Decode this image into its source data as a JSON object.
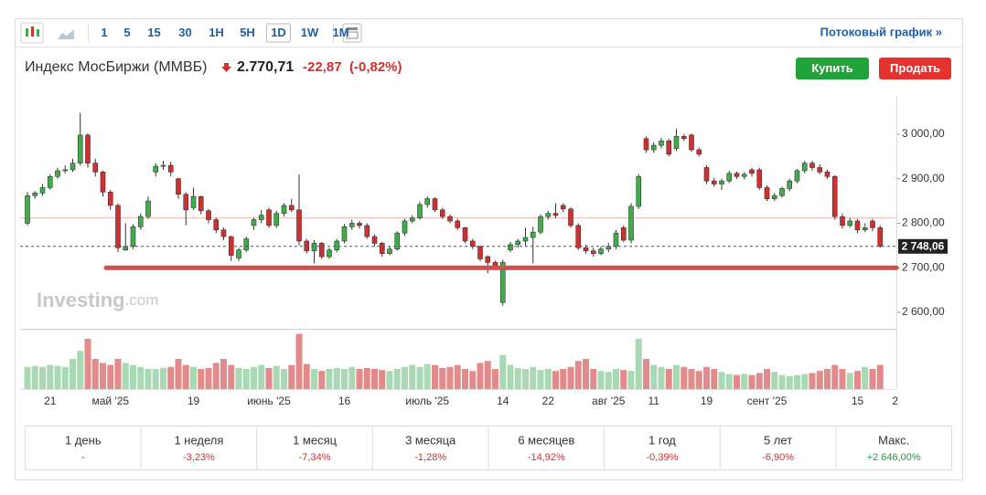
{
  "toolbar": {
    "timeframes": [
      "1",
      "5",
      "15",
      "30",
      "1H",
      "5H",
      "1D",
      "1W",
      "1M"
    ],
    "active": "1D",
    "stream_link": "Потоковый график »"
  },
  "header": {
    "name": "Индекс МосБиржи (ММВБ)",
    "price": "2.770,71",
    "change": "-22,87",
    "change_pct": "(-0,82%)",
    "buy": "Купить",
    "sell": "Продать"
  },
  "watermark": {
    "brand": "Investing",
    "suffix": ".com"
  },
  "chart_data": {
    "type": "candlestick",
    "categories": [
      null,
      null,
      null,
      "21",
      null,
      null,
      null,
      null,
      null,
      null,
      null,
      "май '25",
      null,
      null,
      null,
      null,
      null,
      null,
      null,
      null,
      null,
      null,
      "19",
      null,
      null,
      null,
      null,
      null,
      null,
      null,
      null,
      null,
      "июнь '25",
      null,
      null,
      null,
      null,
      null,
      null,
      null,
      null,
      null,
      "16",
      null,
      null,
      null,
      null,
      null,
      null,
      null,
      null,
      null,
      null,
      "июль '25",
      null,
      null,
      null,
      null,
      null,
      null,
      null,
      null,
      null,
      "14",
      null,
      null,
      null,
      null,
      null,
      "22",
      null,
      null,
      null,
      null,
      null,
      null,
      null,
      "авг '25",
      null,
      null,
      null,
      null,
      null,
      "11",
      null,
      null,
      null,
      null,
      null,
      null,
      "19",
      null,
      null,
      null,
      null,
      null,
      null,
      null,
      "сент '25",
      null,
      null,
      null,
      null,
      null,
      null,
      null,
      null,
      null,
      null,
      null,
      "15",
      null,
      null,
      null,
      null,
      "2"
    ],
    "ohlc": [
      [
        2800,
        2870,
        2795,
        2862
      ],
      [
        2862,
        2872,
        2855,
        2868
      ],
      [
        2868,
        2888,
        2862,
        2880
      ],
      [
        2880,
        2910,
        2875,
        2905
      ],
      [
        2905,
        2925,
        2900,
        2918
      ],
      [
        2918,
        2930,
        2912,
        2920
      ],
      [
        2920,
        2945,
        2915,
        2935
      ],
      [
        2935,
        3048,
        2930,
        2998
      ],
      [
        2998,
        3002,
        2925,
        2935
      ],
      [
        2935,
        2945,
        2905,
        2915
      ],
      [
        2915,
        2918,
        2860,
        2870
      ],
      [
        2870,
        2875,
        2830,
        2840
      ],
      [
        2840,
        2845,
        2735,
        2745
      ],
      [
        2740,
        2800,
        2738,
        2748
      ],
      [
        2748,
        2798,
        2742,
        2792
      ],
      [
        2792,
        2822,
        2785,
        2815
      ],
      [
        2815,
        2860,
        2810,
        2850
      ],
      [
        2915,
        2935,
        2905,
        2928
      ],
      [
        2928,
        2940,
        2920,
        2930
      ],
      [
        2930,
        2938,
        2905,
        2915
      ],
      [
        2900,
        2902,
        2855,
        2865
      ],
      [
        2865,
        2870,
        2795,
        2830
      ],
      [
        2835,
        2880,
        2830,
        2860
      ],
      [
        2860,
        2862,
        2820,
        2828
      ],
      [
        2828,
        2832,
        2800,
        2808
      ],
      [
        2808,
        2812,
        2778,
        2785
      ],
      [
        2785,
        2790,
        2762,
        2770
      ],
      [
        2770,
        2772,
        2715,
        2728
      ],
      [
        2722,
        2745,
        2715,
        2740
      ],
      [
        2740,
        2770,
        2735,
        2765
      ],
      [
        2795,
        2812,
        2785,
        2808
      ],
      [
        2808,
        2830,
        2800,
        2818
      ],
      [
        2830,
        2835,
        2790,
        2795
      ],
      [
        2795,
        2828,
        2790,
        2822
      ],
      [
        2822,
        2845,
        2815,
        2840
      ],
      [
        2840,
        2855,
        2825,
        2830
      ],
      [
        2830,
        2910,
        2750,
        2760
      ],
      [
        2760,
        2765,
        2732,
        2738
      ],
      [
        2738,
        2762,
        2710,
        2755
      ],
      [
        2755,
        2758,
        2720,
        2725
      ],
      [
        2725,
        2745,
        2720,
        2740
      ],
      [
        2740,
        2765,
        2735,
        2760
      ],
      [
        2760,
        2798,
        2755,
        2792
      ],
      [
        2792,
        2808,
        2785,
        2800
      ],
      [
        2800,
        2805,
        2788,
        2795
      ],
      [
        2795,
        2800,
        2765,
        2770
      ],
      [
        2770,
        2775,
        2748,
        2755
      ],
      [
        2755,
        2758,
        2725,
        2732
      ],
      [
        2732,
        2748,
        2728,
        2742
      ],
      [
        2742,
        2782,
        2738,
        2778
      ],
      [
        2778,
        2810,
        2772,
        2805
      ],
      [
        2805,
        2818,
        2800,
        2812
      ],
      [
        2812,
        2848,
        2808,
        2842
      ],
      [
        2842,
        2860,
        2835,
        2855
      ],
      [
        2855,
        2858,
        2825,
        2830
      ],
      [
        2830,
        2835,
        2810,
        2815
      ],
      [
        2815,
        2820,
        2800,
        2805
      ],
      [
        2805,
        2810,
        2785,
        2790
      ],
      [
        2790,
        2792,
        2755,
        2760
      ],
      [
        2760,
        2765,
        2742,
        2748
      ],
      [
        2748,
        2750,
        2715,
        2720
      ],
      [
        2725,
        2728,
        2688,
        2712
      ],
      [
        2712,
        2716,
        2695,
        2700
      ],
      [
        2622,
        2718,
        2615,
        2712
      ],
      [
        2740,
        2758,
        2735,
        2752
      ],
      [
        2752,
        2765,
        2745,
        2760
      ],
      [
        2760,
        2790,
        2750,
        2768
      ],
      [
        2768,
        2792,
        2710,
        2780
      ],
      [
        2780,
        2820,
        2775,
        2815
      ],
      [
        2815,
        2828,
        2808,
        2822
      ],
      [
        2822,
        2845,
        2812,
        2818
      ],
      [
        2840,
        2845,
        2825,
        2832
      ],
      [
        2832,
        2836,
        2790,
        2795
      ],
      [
        2795,
        2800,
        2740,
        2745
      ],
      [
        2745,
        2752,
        2732,
        2738
      ],
      [
        2738,
        2745,
        2725,
        2732
      ],
      [
        2732,
        2748,
        2728,
        2742
      ],
      [
        2742,
        2756,
        2735,
        2748
      ],
      [
        2748,
        2785,
        2742,
        2778
      ],
      [
        2790,
        2795,
        2758,
        2762
      ],
      [
        2762,
        2845,
        2755,
        2838
      ],
      [
        2838,
        2910,
        2832,
        2905
      ],
      [
        2990,
        2995,
        2958,
        2965
      ],
      [
        2965,
        2982,
        2958,
        2975
      ],
      [
        2975,
        2992,
        2968,
        2985
      ],
      [
        2985,
        2990,
        2950,
        2955
      ],
      [
        2968,
        3012,
        2962,
        2995
      ],
      [
        2995,
        3000,
        2985,
        2990
      ],
      [
        2998,
        3002,
        2960,
        2965
      ],
      [
        2965,
        2970,
        2950,
        2955
      ],
      [
        2925,
        2930,
        2888,
        2895
      ],
      [
        2895,
        2902,
        2882,
        2888
      ],
      [
        2888,
        2900,
        2875,
        2895
      ],
      [
        2895,
        2918,
        2890,
        2912
      ],
      [
        2912,
        2916,
        2900,
        2905
      ],
      [
        2905,
        2915,
        2898,
        2910
      ],
      [
        2920,
        2925,
        2905,
        2912
      ],
      [
        2920,
        2925,
        2875,
        2880
      ],
      [
        2880,
        2885,
        2850,
        2855
      ],
      [
        2855,
        2868,
        2850,
        2862
      ],
      [
        2862,
        2882,
        2858,
        2878
      ],
      [
        2878,
        2900,
        2872,
        2895
      ],
      [
        2895,
        2922,
        2890,
        2918
      ],
      [
        2918,
        2940,
        2912,
        2935
      ],
      [
        2935,
        2940,
        2918,
        2925
      ],
      [
        2925,
        2932,
        2910,
        2915
      ],
      [
        2915,
        2920,
        2900,
        2905
      ],
      [
        2905,
        2908,
        2808,
        2815
      ],
      [
        2815,
        2822,
        2788,
        2795
      ],
      [
        2795,
        2812,
        2790,
        2805
      ],
      [
        2805,
        2810,
        2778,
        2785
      ],
      [
        2785,
        2800,
        2780,
        2790
      ],
      [
        2805,
        2810,
        2782,
        2790
      ],
      [
        2790,
        2795,
        2745,
        2748.06
      ],
      null,
      null
    ],
    "volume": [
      22,
      23,
      22,
      24,
      23,
      22,
      30,
      38,
      50,
      30,
      26,
      24,
      30,
      26,
      24,
      22,
      20,
      20,
      21,
      22,
      30,
      24,
      22,
      20,
      21,
      26,
      30,
      24,
      21,
      20,
      22,
      24,
      21,
      23,
      20,
      24,
      55,
      25,
      20,
      18,
      20,
      21,
      20,
      22,
      20,
      21,
      20,
      19,
      18,
      20,
      22,
      24,
      22,
      25,
      24,
      21,
      22,
      24,
      20,
      18,
      26,
      28,
      20,
      34,
      24,
      21,
      20,
      22,
      19,
      20,
      18,
      20,
      22,
      28,
      30,
      20,
      18,
      17,
      20,
      19,
      18,
      50,
      30,
      24,
      22,
      20,
      24,
      22,
      20,
      18,
      22,
      20,
      17,
      15,
      14,
      15,
      14,
      16,
      20,
      17,
      14,
      13,
      14,
      15,
      16,
      18,
      20,
      24,
      20,
      16,
      18,
      22,
      20,
      24,
      null,
      null
    ],
    "ylim": [
      2563,
      3086
    ],
    "vlim": [
      0,
      60
    ],
    "yticks": [
      {
        "value": 2600,
        "label": "2 600,00"
      },
      {
        "value": 2700,
        "label": "2 700,00"
      },
      {
        "value": 2800,
        "label": "2 800,00"
      },
      {
        "value": 2900,
        "label": "2 900,00"
      },
      {
        "value": 3000,
        "label": "3 000,00"
      }
    ],
    "last": {
      "value": 2748.06,
      "label": "2 748,06"
    },
    "support_line": 2700,
    "reference_line": 2812,
    "up_color": "#3fae49",
    "down_color": "#d32f2f",
    "up_volume_color": "#a8d8b4",
    "down_volume_color": "#e38a8a"
  },
  "performance": [
    {
      "period": "1 день",
      "change": "-"
    },
    {
      "period": "1 неделя",
      "change": "-3,23%"
    },
    {
      "period": "1 месяц",
      "change": "-7,34%"
    },
    {
      "period": "3 месяца",
      "change": "-1,28%"
    },
    {
      "period": "6 месяцев",
      "change": "-14,92%"
    },
    {
      "period": "1 год",
      "change": "-0,39%"
    },
    {
      "period": "5 лет",
      "change": "-6,90%"
    },
    {
      "period": "Макс.",
      "change": "+2 646,00%"
    }
  ]
}
